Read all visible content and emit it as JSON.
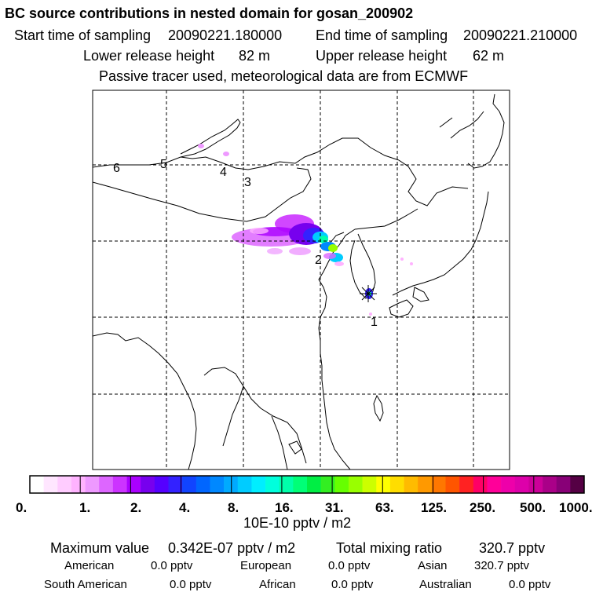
{
  "title": "BC  source contributions in nested domain for gosan_200902",
  "sampling": {
    "start_label": "Start time of sampling",
    "start_value": "20090221.180000",
    "end_label": "End time of sampling",
    "end_value": "20090221.210000"
  },
  "release": {
    "lower_label": "Lower release height",
    "lower_value": "82 m",
    "upper_label": "Upper release height",
    "upper_value": "62 m"
  },
  "note": "Passive tracer used, meteorological data are from ECMWF",
  "markers": [
    "1",
    "2",
    "3",
    "4",
    "5",
    "6"
  ],
  "colorbar": {
    "unit": "10E-10 pptv / m2",
    "labels": [
      "0.",
      "1.",
      "2.",
      "4.",
      "8.",
      "16.",
      "31.",
      "63.",
      "125.",
      "250.",
      "500.",
      "1000."
    ],
    "colors": [
      "#ffffff",
      "#ffe6ff",
      "#ffccff",
      "#ffb3ff",
      "#ee99ff",
      "#dd66ff",
      "#cc33ff",
      "#aa00ff",
      "#7700ee",
      "#5500ff",
      "#3322ff",
      "#1144ff",
      "#0066ff",
      "#0088ff",
      "#00aaff",
      "#00ccff",
      "#00eeff",
      "#00ffdd",
      "#00ffaa",
      "#00ff77",
      "#00ee44",
      "#33ee22",
      "#66ff00",
      "#99ff00",
      "#ccff00",
      "#ffff00",
      "#ffdd00",
      "#ffbb00",
      "#ff9900",
      "#ff7700",
      "#ff5500",
      "#ff2222",
      "#ff0066",
      "#ff0099",
      "#ee00aa",
      "#dd00aa",
      "#cc0099",
      "#aa0088",
      "#880077",
      "#550044"
    ]
  },
  "stats": {
    "max_label": "Maximum value",
    "max_value": "0.342E-07 pptv / m2",
    "total_label": "Total mixing ratio",
    "total_value": "320.7 pptv"
  },
  "regions": [
    {
      "name": "American",
      "value": "0.0 pptv"
    },
    {
      "name": "European",
      "value": "0.0 pptv"
    },
    {
      "name": "Asian",
      "value": "320.7 pptv"
    },
    {
      "name": "South American",
      "value": "0.0 pptv"
    },
    {
      "name": "African",
      "value": "0.0 pptv"
    },
    {
      "name": "Australian",
      "value": "0.0 pptv"
    }
  ]
}
